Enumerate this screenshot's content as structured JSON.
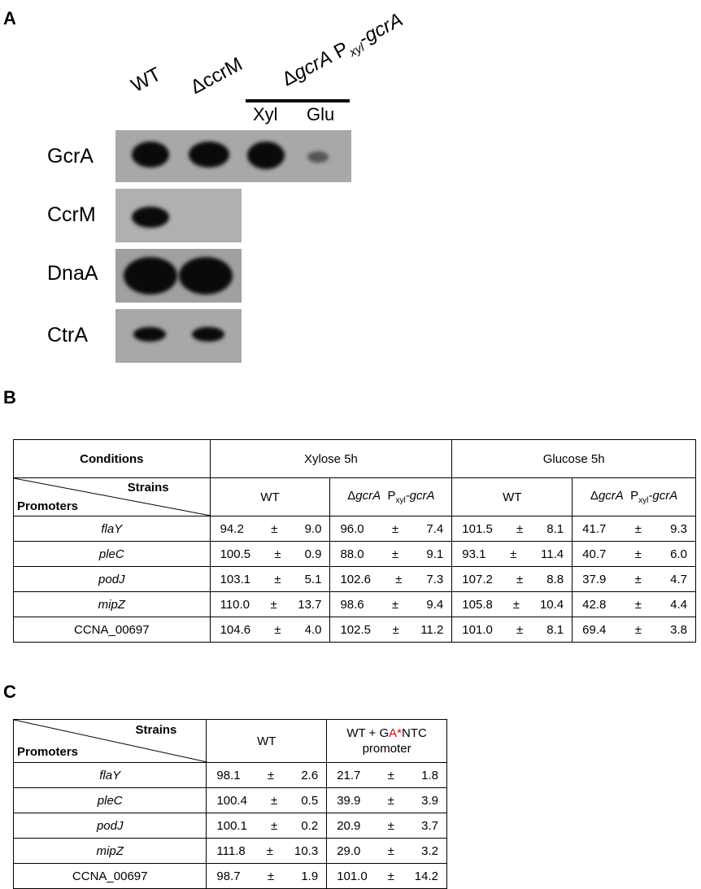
{
  "panel_a": {
    "letter": "A",
    "lanes": [
      "WT",
      "ΔccrM"
    ],
    "strain_group": {
      "prefix": "Δ",
      "gene": "gcrA",
      "p": " P",
      "sub": "xyl",
      "dash": "-",
      "gene2": "gcrA"
    },
    "conditions": [
      "Xyl",
      "Glu"
    ],
    "proteins": [
      "GcrA",
      "CcrM",
      "DnaA",
      "CtrA"
    ]
  },
  "panel_b": {
    "letter": "B",
    "header": {
      "conditions": "Conditions",
      "strains": "Strains",
      "promoters": "Promoters",
      "xylose": "Xylose 5h",
      "glucose": "Glucose 5h",
      "wt": "WT",
      "mutant_prefix": "Δ",
      "mutant_gene": "gcrA",
      "mutant_p": "P",
      "mutant_sub": "xyl",
      "mutant_gene2": "-gcrA",
      "pm": "±"
    },
    "rows": [
      {
        "promoter": "flaY",
        "italic": true,
        "v": [
          [
            "94.2",
            "9.0"
          ],
          [
            "96.0",
            "7.4"
          ],
          [
            "101.5",
            "8.1"
          ],
          [
            "41.7",
            "9.3"
          ]
        ]
      },
      {
        "promoter": "pleC",
        "italic": true,
        "v": [
          [
            "100.5",
            "0.9"
          ],
          [
            "88.0",
            "9.1"
          ],
          [
            "93.1",
            "11.4"
          ],
          [
            "40.7",
            "6.0"
          ]
        ]
      },
      {
        "promoter": "podJ",
        "italic": true,
        "v": [
          [
            "103.1",
            "5.1"
          ],
          [
            "102.6",
            "7.3"
          ],
          [
            "107.2",
            "8.8"
          ],
          [
            "37.9",
            "4.7"
          ]
        ]
      },
      {
        "promoter": "mipZ",
        "italic": true,
        "v": [
          [
            "110.0",
            "13.7"
          ],
          [
            "98.6",
            "9.4"
          ],
          [
            "105.8",
            "10.4"
          ],
          [
            "42.8",
            "4.4"
          ]
        ]
      },
      {
        "promoter": "CCNA_00697",
        "italic": false,
        "v": [
          [
            "104.6",
            "4.0"
          ],
          [
            "102.5",
            "11.2"
          ],
          [
            "101.0",
            "8.1"
          ],
          [
            "69.4",
            "3.8"
          ]
        ]
      }
    ]
  },
  "panel_c": {
    "letter": "C",
    "header": {
      "strains": "Strains",
      "promoters": "Promoters",
      "wt": "WT",
      "mut_pre": "WT + G",
      "mut_red": "A*",
      "mut_post": "NTC",
      "mut_line2": "promoter",
      "pm": "±"
    },
    "rows": [
      {
        "promoter": "flaY",
        "italic": true,
        "v": [
          [
            "98.1",
            "2.6"
          ],
          [
            "21.7",
            "1.8"
          ]
        ]
      },
      {
        "promoter": "pleC",
        "italic": true,
        "v": [
          [
            "100.4",
            "0.5"
          ],
          [
            "39.9",
            "3.9"
          ]
        ]
      },
      {
        "promoter": "podJ",
        "italic": true,
        "v": [
          [
            "100.1",
            "0.2"
          ],
          [
            "20.9",
            "3.7"
          ]
        ]
      },
      {
        "promoter": "mipZ",
        "italic": true,
        "v": [
          [
            "111.8",
            "10.3"
          ],
          [
            "29.0",
            "3.2"
          ]
        ]
      },
      {
        "promoter": "CCNA_00697",
        "italic": false,
        "v": [
          [
            "98.7",
            "1.9"
          ],
          [
            "101.0",
            "14.2"
          ]
        ]
      }
    ]
  }
}
